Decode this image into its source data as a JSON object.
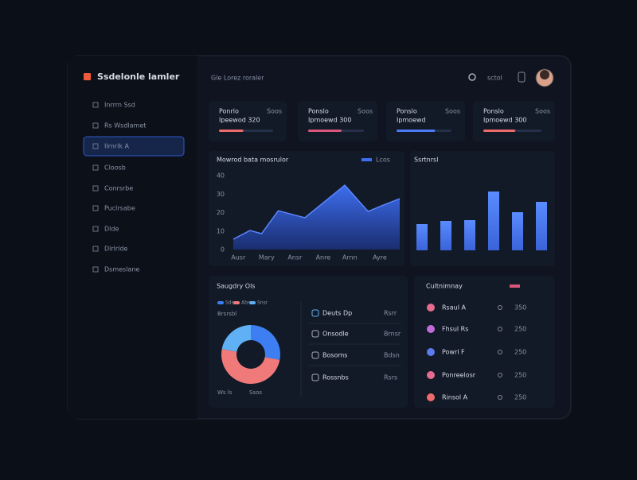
{
  "sidebar": {
    "logo": "Ssdelonle lamler",
    "menu": [
      "Inrrrn Ssd",
      "Rs Wsdlamet",
      "Ilrnrlk A",
      "Cloosb",
      "Conrsrbe",
      "Puclrsabe",
      "Dlde",
      "Dlrlrlde",
      "Dsmeslane"
    ]
  },
  "header": {
    "title": "Gle Lorez roraler",
    "user": "sctol"
  },
  "kpis": [
    {
      "label": "Ponrlo",
      "value": "Ipeewod 320",
      "tag": "Soos",
      "progress": 45
    },
    {
      "label": "Ponslo",
      "value": "Ipmoewd 300",
      "tag": "Soos",
      "progress": 60
    },
    {
      "label": "Ponslo",
      "value": "Ipmoewd",
      "tag": "Soos",
      "progress": 70
    },
    {
      "label": "Ponslo",
      "value": "Ipmoewd 300",
      "tag": "Soos",
      "progress": 55
    }
  ],
  "chart_data": [
    {
      "type": "line",
      "title": "Mowrod bata mosrulor",
      "legend": "Lcos",
      "color": "#3d6ef0",
      "x": [
        0,
        1,
        1.7,
        2.7,
        4.3,
        6.7,
        8.1,
        9,
        10
      ],
      "values": [
        5.6,
        10.3,
        8.6,
        21,
        17.2,
        34.8,
        20.6,
        24,
        27.5
      ],
      "xlim": [
        0,
        10
      ],
      "xticks": [
        {
          "value": 0.3,
          "label": "Ausr"
        },
        {
          "value": 2,
          "label": "Mary"
        },
        {
          "value": 3.7,
          "label": "Ansr"
        },
        {
          "value": 5.4,
          "label": "Anre"
        },
        {
          "value": 7,
          "label": "Arnn"
        },
        {
          "value": 8.8,
          "label": "Ayre"
        }
      ],
      "ylim": [
        0,
        40
      ],
      "yticks": [
        0,
        10,
        20,
        30,
        40
      ]
    },
    {
      "type": "bar",
      "title": "Ssrtnrsl",
      "color": "#4b7bf5",
      "values": [
        33,
        37,
        38,
        74,
        48,
        61
      ],
      "ylim": [
        0,
        80
      ]
    },
    {
      "type": "pie",
      "title": "Saugdry Ols",
      "values": [
        28,
        50,
        22
      ],
      "colors": [
        "#3d7ff2",
        "#f07a7a",
        "#5fb0f5"
      ],
      "legend": [
        "Sdsu",
        "Abrs",
        "Snsr"
      ],
      "sublabel": "Brsrsbl",
      "footer": [
        "Ws ls",
        "Ssos"
      ],
      "rows": [
        {
          "label": "Deuts Dp",
          "value": "Rsrr"
        },
        {
          "label": "Onsodle",
          "value": "Brnsr"
        },
        {
          "label": "Bosoms",
          "value": "Bdsn"
        },
        {
          "label": "Rossnbs",
          "value": "Rsrs"
        }
      ]
    }
  ],
  "table": {
    "title": "Cultnimnay",
    "rows": [
      {
        "name": "Rsaul A",
        "value": "350"
      },
      {
        "name": "Fhsul Rs",
        "value": "250"
      },
      {
        "name": "Powrl F",
        "value": "250"
      },
      {
        "name": "Ponreelosr",
        "value": "250"
      },
      {
        "name": "Rinsol A",
        "value": "250"
      }
    ]
  }
}
